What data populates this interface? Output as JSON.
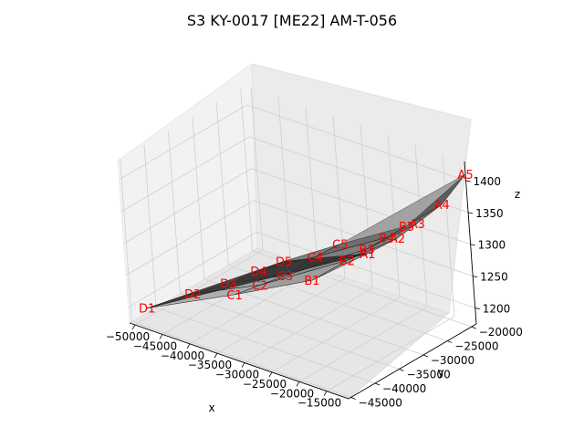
{
  "chart_data": {
    "type": "surface3d",
    "title": "S3 KY-0017 [ME22] AM-T-056",
    "xlabel": "x",
    "ylabel": "y",
    "zlabel": "z",
    "xlim": [
      -51000,
      -11000
    ],
    "ylim": [
      -45500,
      -19000
    ],
    "zlim": [
      1175,
      1430
    ],
    "x_ticks": [
      -50000,
      -45000,
      -40000,
      -35000,
      -30000,
      -25000,
      -20000,
      -15000
    ],
    "y_ticks": [
      -45000,
      -40000,
      -35000,
      -30000,
      -25000,
      -20000
    ],
    "z_ticks": [
      1200,
      1250,
      1300,
      1350,
      1400
    ],
    "x_tick_labels": [
      "−50000",
      "−45000",
      "−40000",
      "−35000",
      "−30000",
      "−25000",
      "−20000",
      "−15000"
    ],
    "y_tick_labels": [
      "−45000",
      "−40000",
      "−35000",
      "−30000",
      "−25000",
      "−20000"
    ],
    "z_tick_labels": [
      "1200",
      "1250",
      "1300",
      "1350",
      "1400"
    ],
    "grid": true,
    "surface_color": "#404040",
    "label_color": "#ff0000",
    "rows": [
      "A",
      "B",
      "C",
      "D"
    ],
    "points": [
      {
        "label": "A1",
        "x": -21000,
        "y": -29000,
        "z": 1300
      },
      {
        "label": "A2",
        "x": -18000,
        "y": -26000,
        "z": 1320
      },
      {
        "label": "A3",
        "x": -16000,
        "y": -24000,
        "z": 1340
      },
      {
        "label": "A4",
        "x": -13000,
        "y": -22000,
        "z": 1370
      },
      {
        "label": "A5",
        "x": -11000,
        "y": -19000,
        "z": 1410
      },
      {
        "label": "B1",
        "x": -28000,
        "y": -33000,
        "z": 1255
      },
      {
        "label": "B2",
        "x": -24000,
        "y": -30000,
        "z": 1285
      },
      {
        "label": "B3",
        "x": -22000,
        "y": -28000,
        "z": 1300
      },
      {
        "label": "B4",
        "x": -20000,
        "y": -26000,
        "z": 1315
      },
      {
        "label": "B5",
        "x": -18000,
        "y": -24000,
        "z": 1330
      },
      {
        "label": "C1",
        "x": -38000,
        "y": -38000,
        "z": 1225
      },
      {
        "label": "C2",
        "x": -35000,
        "y": -36000,
        "z": 1240
      },
      {
        "label": "C3",
        "x": -32000,
        "y": -34000,
        "z": 1255
      },
      {
        "label": "C4",
        "x": -29000,
        "y": -31000,
        "z": 1280
      },
      {
        "label": "C5",
        "x": -26000,
        "y": -29000,
        "z": 1300
      },
      {
        "label": "D1",
        "x": -48000,
        "y": -45000,
        "z": 1205
      },
      {
        "label": "D2",
        "x": -43000,
        "y": -41000,
        "z": 1225
      },
      {
        "label": "D3",
        "x": -39000,
        "y": -38000,
        "z": 1240
      },
      {
        "label": "D4",
        "x": -36000,
        "y": -35000,
        "z": 1255
      },
      {
        "label": "D5",
        "x": -33000,
        "y": -33000,
        "z": 1270
      }
    ]
  }
}
